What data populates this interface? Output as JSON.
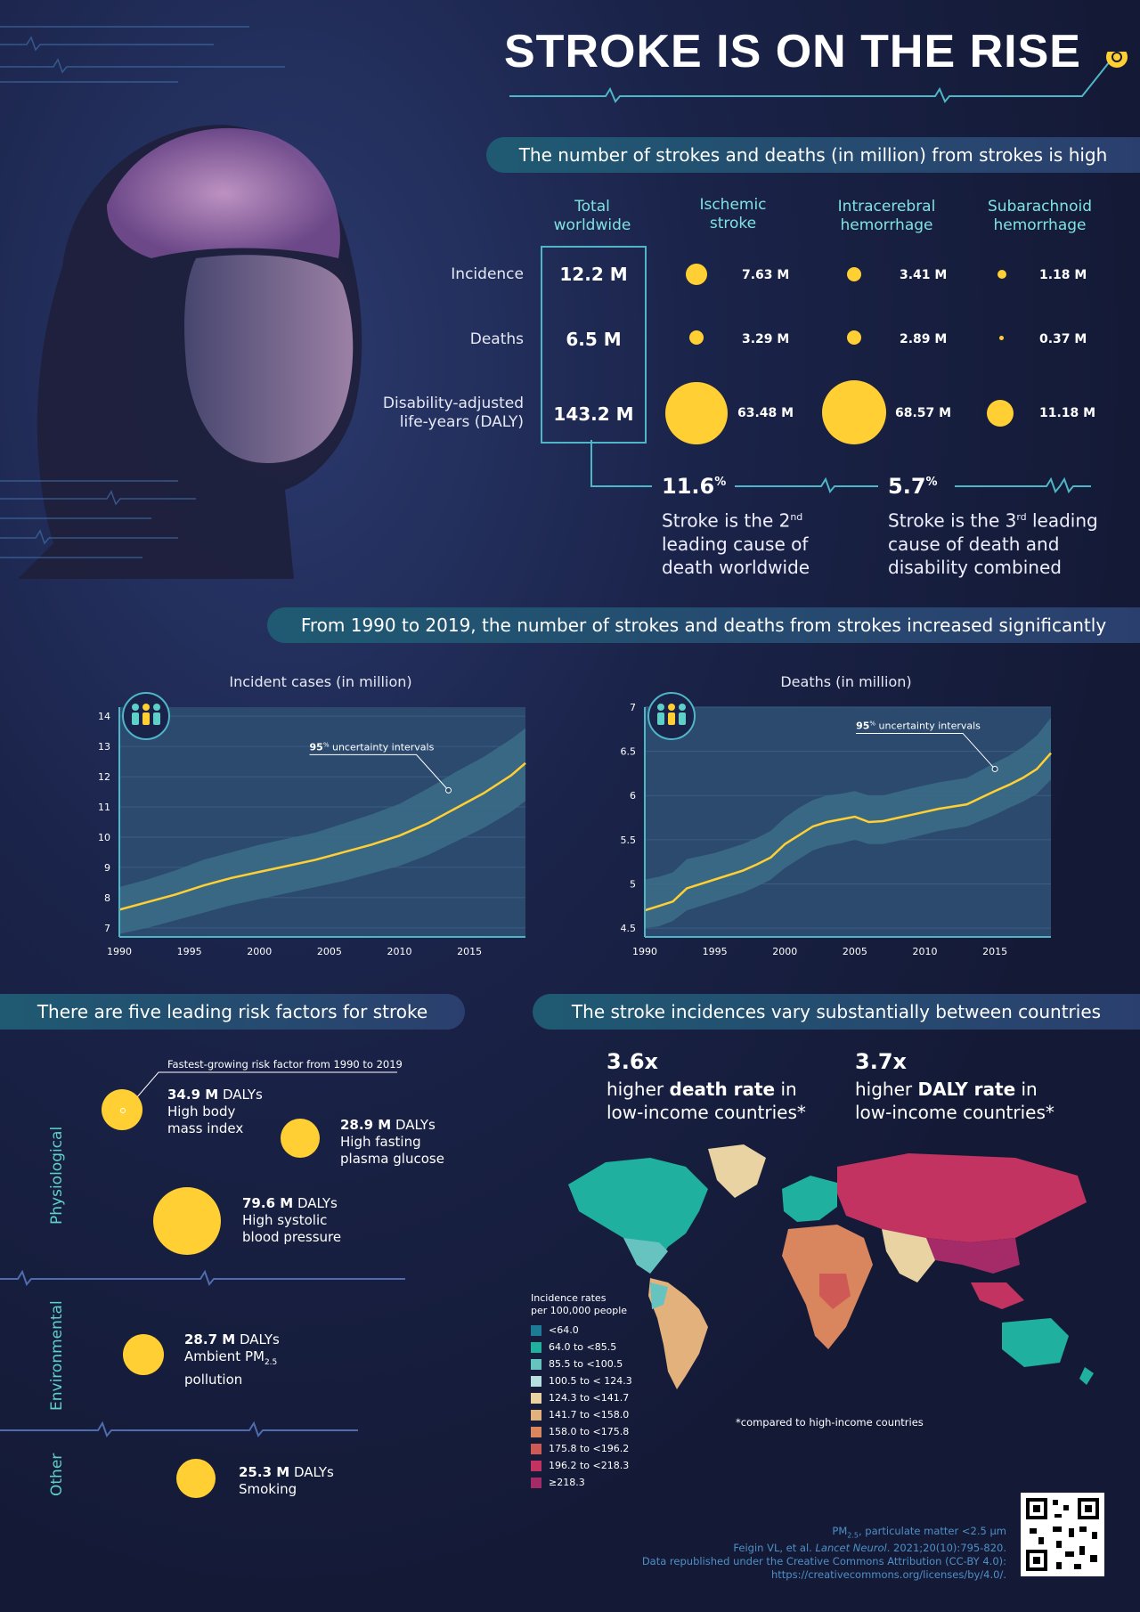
{
  "header": {
    "title": "STROKE IS ON THE RISE"
  },
  "section1": {
    "banner": "The number of strokes and deaths (in million) from strokes is high",
    "columns": [
      "Total worldwide",
      "Ischemic stroke",
      "Intracerebral hemorrhage",
      "Subarachnoid hemorrhage"
    ],
    "col_lines": [
      [
        "Total",
        "worldwide"
      ],
      [
        "Ischemic",
        "stroke"
      ],
      [
        "Intracerebral",
        "hemorrhage"
      ],
      [
        "Subarachnoid",
        "hemorrhage"
      ]
    ],
    "rows": [
      {
        "label": "Incidence",
        "label2": "",
        "total": "12.2 M",
        "values": [
          "7.63 M",
          "3.41 M",
          "1.18 M"
        ],
        "nums": [
          7.63,
          3.41,
          1.18
        ]
      },
      {
        "label": "Deaths",
        "label2": "",
        "total": "6.5 M",
        "values": [
          "3.29 M",
          "2.89 M",
          "0.37 M"
        ],
        "nums": [
          3.29,
          2.89,
          0.37
        ]
      },
      {
        "label": "Disability-adjusted",
        "label2": "life-years (DALY)",
        "total": "143.2 M",
        "values": [
          "63.48 M",
          "68.57 M",
          "11.18 M"
        ],
        "nums": [
          63.48,
          68.57,
          11.18
        ]
      }
    ],
    "stat1": {
      "value": "11.6",
      "unit": "%",
      "l1": "Stroke is the 2",
      "l1sup": "nd",
      "l2": "leading cause of",
      "l3": "death worldwide"
    },
    "stat2": {
      "value": "5.7",
      "unit": "%",
      "l1": "Stroke is the 3",
      "l1sup": "rd",
      "l1b": " leading",
      "l2": "cause of death and",
      "l3": "disability combined"
    }
  },
  "section2": {
    "banner": "From 1990 to 2019, the number of strokes and deaths from strokes increased significantly",
    "ui_label_pct": "95",
    "ui_label_sup": "%",
    "ui_label_text": " uncertainty intervals"
  },
  "chart_data": [
    {
      "type": "line",
      "title": "Incident cases (in million)",
      "x": [
        1990,
        1992,
        1994,
        1996,
        1998,
        2000,
        2002,
        2004,
        2006,
        2008,
        2010,
        2012,
        2014,
        2016,
        2018,
        2019
      ],
      "y": [
        7.6,
        7.85,
        8.1,
        8.4,
        8.65,
        8.85,
        9.05,
        9.25,
        9.5,
        9.75,
        10.05,
        10.45,
        10.95,
        11.45,
        12.05,
        12.45
      ],
      "lower": [
        6.8,
        7.0,
        7.25,
        7.5,
        7.75,
        7.95,
        8.15,
        8.35,
        8.55,
        8.8,
        9.05,
        9.4,
        9.85,
        10.3,
        10.85,
        11.2
      ],
      "upper": [
        8.35,
        8.6,
        8.9,
        9.25,
        9.5,
        9.75,
        9.95,
        10.15,
        10.45,
        10.75,
        11.1,
        11.6,
        12.15,
        12.65,
        13.25,
        13.6
      ],
      "xticks": [
        1990,
        1995,
        2000,
        2005,
        2010,
        2015
      ],
      "yticks": [
        7,
        8,
        9,
        10,
        11,
        12,
        13,
        14
      ],
      "ylim": [
        6.7,
        14.3
      ],
      "xlim": [
        1990,
        2019
      ],
      "annotation": {
        "x": 2013.5,
        "y": 11.55
      }
    },
    {
      "type": "line",
      "title": "Deaths (in million)",
      "x": [
        1990,
        1991,
        1992,
        1993,
        1995,
        1997,
        1998,
        1999,
        2000,
        2001,
        2002,
        2003,
        2004,
        2005,
        2006,
        2007,
        2009,
        2011,
        2013,
        2015,
        2016,
        2017,
        2018,
        2019
      ],
      "y": [
        4.7,
        4.75,
        4.8,
        4.95,
        5.05,
        5.15,
        5.22,
        5.3,
        5.45,
        5.55,
        5.65,
        5.7,
        5.73,
        5.76,
        5.7,
        5.71,
        5.78,
        5.85,
        5.9,
        6.05,
        6.12,
        6.2,
        6.3,
        6.48
      ],
      "lower": [
        4.5,
        4.52,
        4.58,
        4.7,
        4.8,
        4.9,
        4.97,
        5.05,
        5.18,
        5.28,
        5.38,
        5.43,
        5.46,
        5.5,
        5.45,
        5.45,
        5.52,
        5.6,
        5.65,
        5.78,
        5.86,
        5.93,
        6.02,
        6.18
      ],
      "upper": [
        5.05,
        5.08,
        5.13,
        5.28,
        5.35,
        5.45,
        5.52,
        5.6,
        5.75,
        5.86,
        5.95,
        6.0,
        6.02,
        6.05,
        6.0,
        6.0,
        6.08,
        6.15,
        6.2,
        6.37,
        6.45,
        6.55,
        6.68,
        6.88
      ],
      "xticks": [
        1990,
        1995,
        2000,
        2005,
        2010,
        2015
      ],
      "yticks": [
        4.5,
        5,
        5.5,
        6,
        6.5,
        7
      ],
      "ylim": [
        4.4,
        7.0
      ],
      "xlim": [
        1990,
        2019
      ],
      "annotation": {
        "x": 2015,
        "y": 6.3
      }
    }
  ],
  "section3": {
    "banner": "There are five leading risk factors for stroke",
    "fastest": "Fastest-growing risk factor from 1990 to 2019",
    "groups": [
      "Physiological",
      "Environmental",
      "Other"
    ],
    "unit": " DALYs",
    "risks": [
      {
        "value": "34.9 M",
        "name1": "High body",
        "name2": "mass index"
      },
      {
        "value": "28.9 M",
        "name1": "High fasting",
        "name2": "plasma glucose"
      },
      {
        "value": "79.6 M",
        "name1": "High systolic",
        "name2": "blood pressure"
      },
      {
        "value": "28.7 M",
        "name1": "Ambient PM",
        "name1sub": "2.5",
        "name2": "pollution"
      },
      {
        "value": "25.3 M",
        "name1": "Smoking",
        "name2": ""
      }
    ]
  },
  "section4": {
    "banner": "The stroke incidences vary substantially between countries",
    "s1": {
      "big": "3.6x",
      "l1a": "higher ",
      "l1b": "death rate",
      "l1c": " in",
      "l2": "low-income countries*"
    },
    "s2": {
      "big": "3.7x",
      "l1a": "higher ",
      "l1b": "DALY rate",
      "l1c": " in",
      "l2": "low-income countries*"
    },
    "legend_title1": "Incidence rates",
    "legend_title2": "per 100,000 people",
    "legend": [
      {
        "label": "<64.0",
        "color": "#1e7b95"
      },
      {
        "label": "64.0 to <85.5",
        "color": "#1fb0a0"
      },
      {
        "label": "85.5 to <100.5",
        "color": "#66c3c0"
      },
      {
        "label": "100.5 to < 124.3",
        "color": "#b6dfe0"
      },
      {
        "label": "124.3 to <141.7",
        "color": "#ead3a3"
      },
      {
        "label": "141.7 to <158.0",
        "color": "#e3b27c"
      },
      {
        "label": "158.0 to <175.8",
        "color": "#d9855e"
      },
      {
        "label": "175.8 to <196.2",
        "color": "#cf5a55"
      },
      {
        "label": "196.2 to <218.3",
        "color": "#c23362"
      },
      {
        "label": "≥218.3",
        "color": "#a42a68"
      }
    ],
    "note": "*compared to high-income countries"
  },
  "footer": {
    "l1": "PM",
    "l1sub": "2.5",
    "l1b": ", particulate matter <2.5 µm",
    "l2a": "Feigin VL, et al. ",
    "l2b": "Lancet Neurol",
    "l2c": ". 2021;20(10):795-820.",
    "l3": "Data republished under the Creative Commons Attribution (CC-BY 4.0):",
    "l4": "https://creativecommons.org/licenses/by/4.0/."
  },
  "colors": {
    "accent": "#ffcf33",
    "teal": "#5fd0c8",
    "chart_band": "#3a6b86",
    "chart_bg": "#2b4a6e"
  }
}
